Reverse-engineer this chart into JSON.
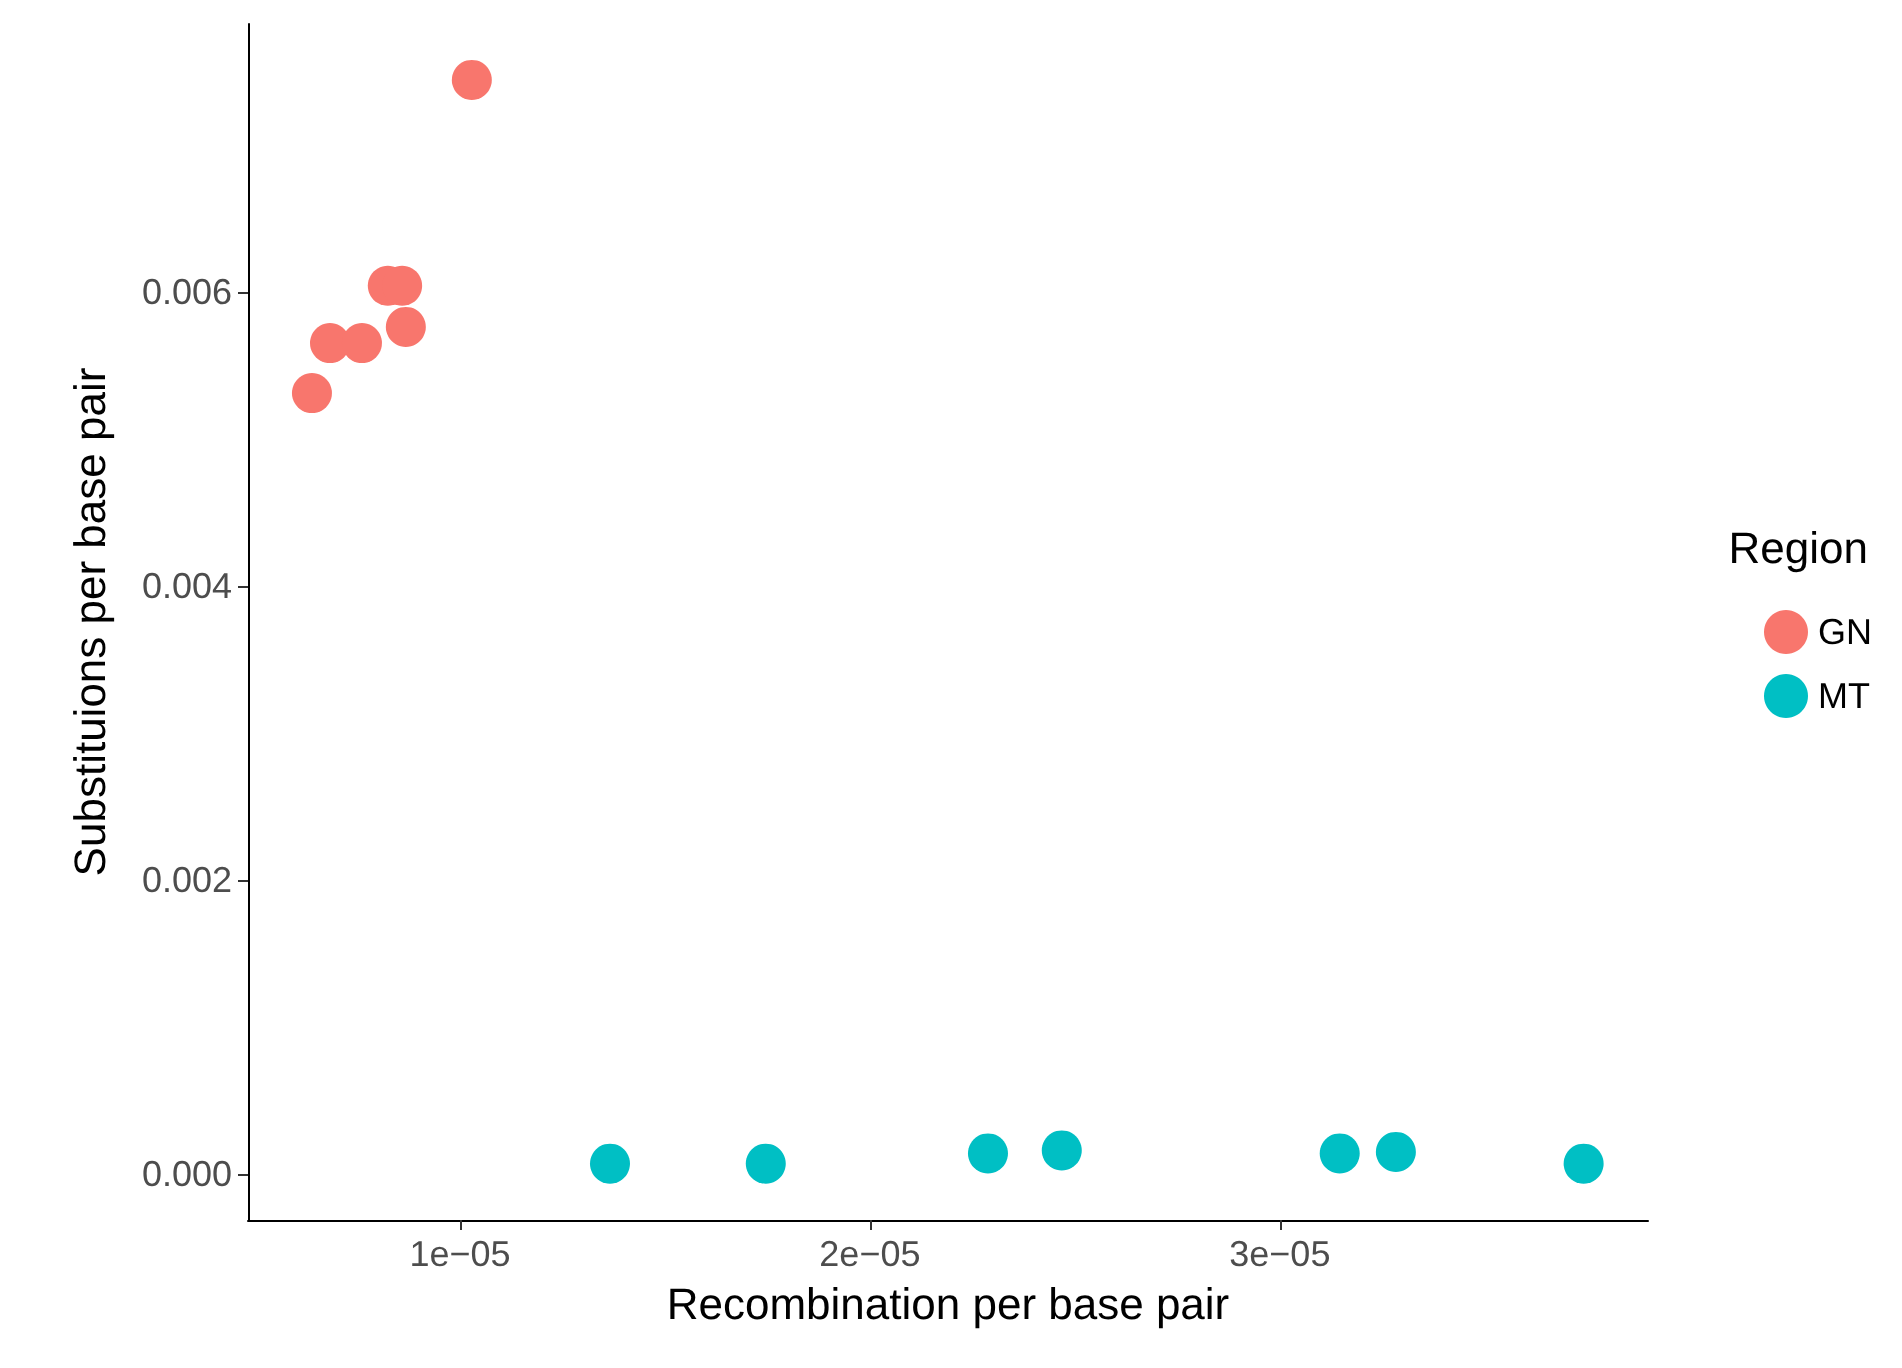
{
  "chart_data": {
    "type": "scatter",
    "xlabel": "Recombination per base pair",
    "ylabel": "Substituions per base pair",
    "legend_title": "Region",
    "legend": "right",
    "grid": false,
    "marker": "circle",
    "xlim": [
      4.83e-06,
      3.898e-05
    ],
    "xticks": [
      {
        "value": 1e-05,
        "label": "1e−05"
      },
      {
        "value": 2e-05,
        "label": "2e−05"
      },
      {
        "value": 3e-05,
        "label": "3e−05"
      }
    ],
    "ylim": [
      -0.000313,
      0.00782
    ],
    "yticks": [
      {
        "value": 0,
        "label": "0.000"
      },
      {
        "value": 0.002,
        "label": "0.002"
      },
      {
        "value": 0.004,
        "label": "0.004"
      },
      {
        "value": 0.006,
        "label": "0.006"
      }
    ],
    "series": [
      {
        "name": "GN",
        "color": "#f8766d",
        "x": [
          6.39e-06,
          6.83e-06,
          7.61e-06,
          8.24e-06,
          8.59e-06,
          8.68e-06,
          1.029e-05
        ],
        "values": [
          0.00531,
          0.00565,
          0.00565,
          0.00604,
          0.00604,
          0.00576,
          0.00744
        ]
      },
      {
        "name": "MT",
        "color": "#00bfc4",
        "x": [
          1.366e-05,
          1.746e-05,
          2.288e-05,
          2.468e-05,
          3.146e-05,
          3.283e-05,
          3.741e-05
        ],
        "values": [
          7e-05,
          7e-05,
          0.00014,
          0.00016,
          0.00014,
          0.00015,
          7e-05
        ]
      }
    ]
  }
}
